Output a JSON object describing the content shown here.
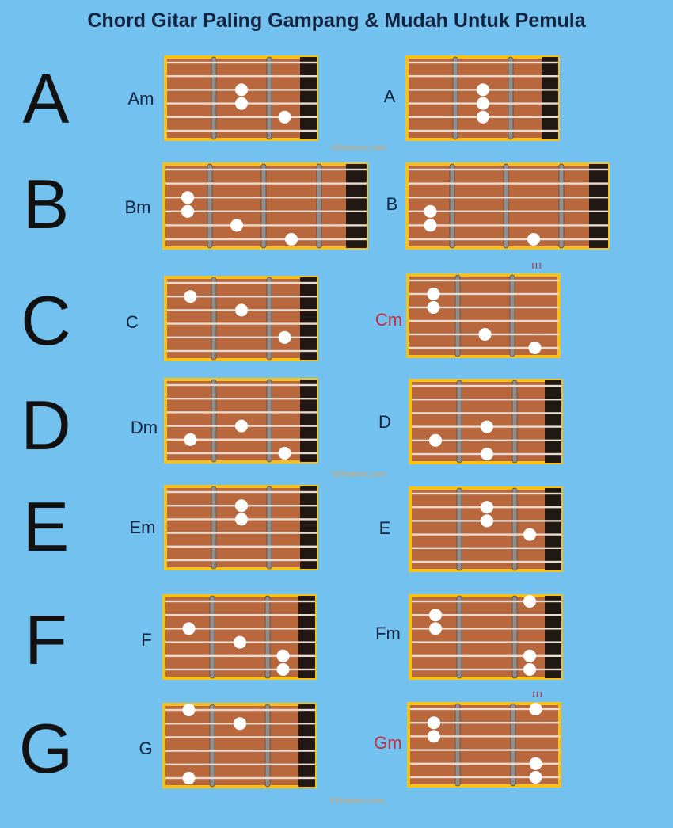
{
  "title": "Chord Gitar Paling Gampang & Mudah Untuk Pemula",
  "watermark": "bilismera.com",
  "colors": {
    "background": "#72c1ef",
    "frame": "#f6c21a",
    "wood": "#b8683c",
    "string": "#eadbd0",
    "fret_wire": "#8f8f8f",
    "nut": "#211713",
    "dot": "#ffffff",
    "label": "#13233f",
    "label_red": "#c42a3c"
  },
  "letters": [
    "A",
    "B",
    "C",
    "D",
    "E",
    "F",
    "G"
  ],
  "chords": [
    {
      "name": "Am",
      "frets": 3,
      "nut": true,
      "dots": [
        {
          "fret": 2,
          "string": 3
        },
        {
          "fret": 2,
          "string": 4
        },
        {
          "fret": 1,
          "string": 5
        }
      ]
    },
    {
      "name": "A",
      "frets": 3,
      "nut": true,
      "dots": [
        {
          "fret": 2,
          "string": 3
        },
        {
          "fret": 2,
          "string": 4
        },
        {
          "fret": 2,
          "string": 5
        }
      ]
    },
    {
      "name": "Bm",
      "frets": 4,
      "nut": true,
      "dots": [
        {
          "fret": 4,
          "string": 3
        },
        {
          "fret": 4,
          "string": 4
        },
        {
          "fret": 3,
          "string": 5
        },
        {
          "fret": 2,
          "string": 6
        }
      ]
    },
    {
      "name": "B",
      "frets": 4,
      "nut": true,
      "dots": [
        {
          "fret": 4,
          "string": 4
        },
        {
          "fret": 4,
          "string": 5
        },
        {
          "fret": 2,
          "string": 6
        }
      ]
    },
    {
      "name": "C",
      "frets": 3,
      "nut": true,
      "dots": [
        {
          "fret": 3,
          "string": 2
        },
        {
          "fret": 2,
          "string": 3
        },
        {
          "fret": 1,
          "string": 5
        }
      ]
    },
    {
      "name": "Cm",
      "frets": 3,
      "nut": false,
      "position": "III",
      "red": true,
      "dots": [
        {
          "fret": 3,
          "string": 2
        },
        {
          "fret": 3,
          "string": 3
        },
        {
          "fret": 2,
          "string": 5
        },
        {
          "fret": 1,
          "string": 6
        }
      ]
    },
    {
      "name": "Dm",
      "frets": 3,
      "nut": true,
      "dots": [
        {
          "fret": 2,
          "string": 4
        },
        {
          "fret": 3,
          "string": 5
        },
        {
          "fret": 1,
          "string": 6
        }
      ]
    },
    {
      "name": "D",
      "frets": 3,
      "nut": true,
      "dots": [
        {
          "fret": 2,
          "string": 4
        },
        {
          "fret": 3,
          "string": 5
        },
        {
          "fret": 2,
          "string": 6
        }
      ]
    },
    {
      "name": "Em",
      "frets": 3,
      "nut": true,
      "dots": [
        {
          "fret": 2,
          "string": 2
        },
        {
          "fret": 2,
          "string": 3
        }
      ]
    },
    {
      "name": "E",
      "frets": 3,
      "nut": true,
      "dots": [
        {
          "fret": 2,
          "string": 2
        },
        {
          "fret": 2,
          "string": 3
        },
        {
          "fret": 1,
          "string": 4
        }
      ]
    },
    {
      "name": "F",
      "frets": 3,
      "nut": true,
      "dots": [
        {
          "fret": 3,
          "string": 3
        },
        {
          "fret": 2,
          "string": 4
        },
        {
          "fret": 1,
          "string": 5
        },
        {
          "fret": 1,
          "string": 6
        }
      ]
    },
    {
      "name": "Fm",
      "frets": 3,
      "nut": true,
      "dots": [
        {
          "fret": 1,
          "string": 1
        },
        {
          "fret": 3,
          "string": 2
        },
        {
          "fret": 3,
          "string": 3
        },
        {
          "fret": 1,
          "string": 5
        },
        {
          "fret": 1,
          "string": 6
        }
      ]
    },
    {
      "name": "G",
      "frets": 3,
      "nut": true,
      "dots": [
        {
          "fret": 3,
          "string": 1
        },
        {
          "fret": 2,
          "string": 2
        },
        {
          "fret": 3,
          "string": 6
        }
      ]
    },
    {
      "name": "Gm",
      "frets": 3,
      "nut": false,
      "position": "III",
      "red": true,
      "dots": [
        {
          "fret": 1,
          "string": 1
        },
        {
          "fret": 3,
          "string": 2
        },
        {
          "fret": 3,
          "string": 3
        },
        {
          "fret": 1,
          "string": 5
        },
        {
          "fret": 1,
          "string": 6
        }
      ]
    }
  ]
}
